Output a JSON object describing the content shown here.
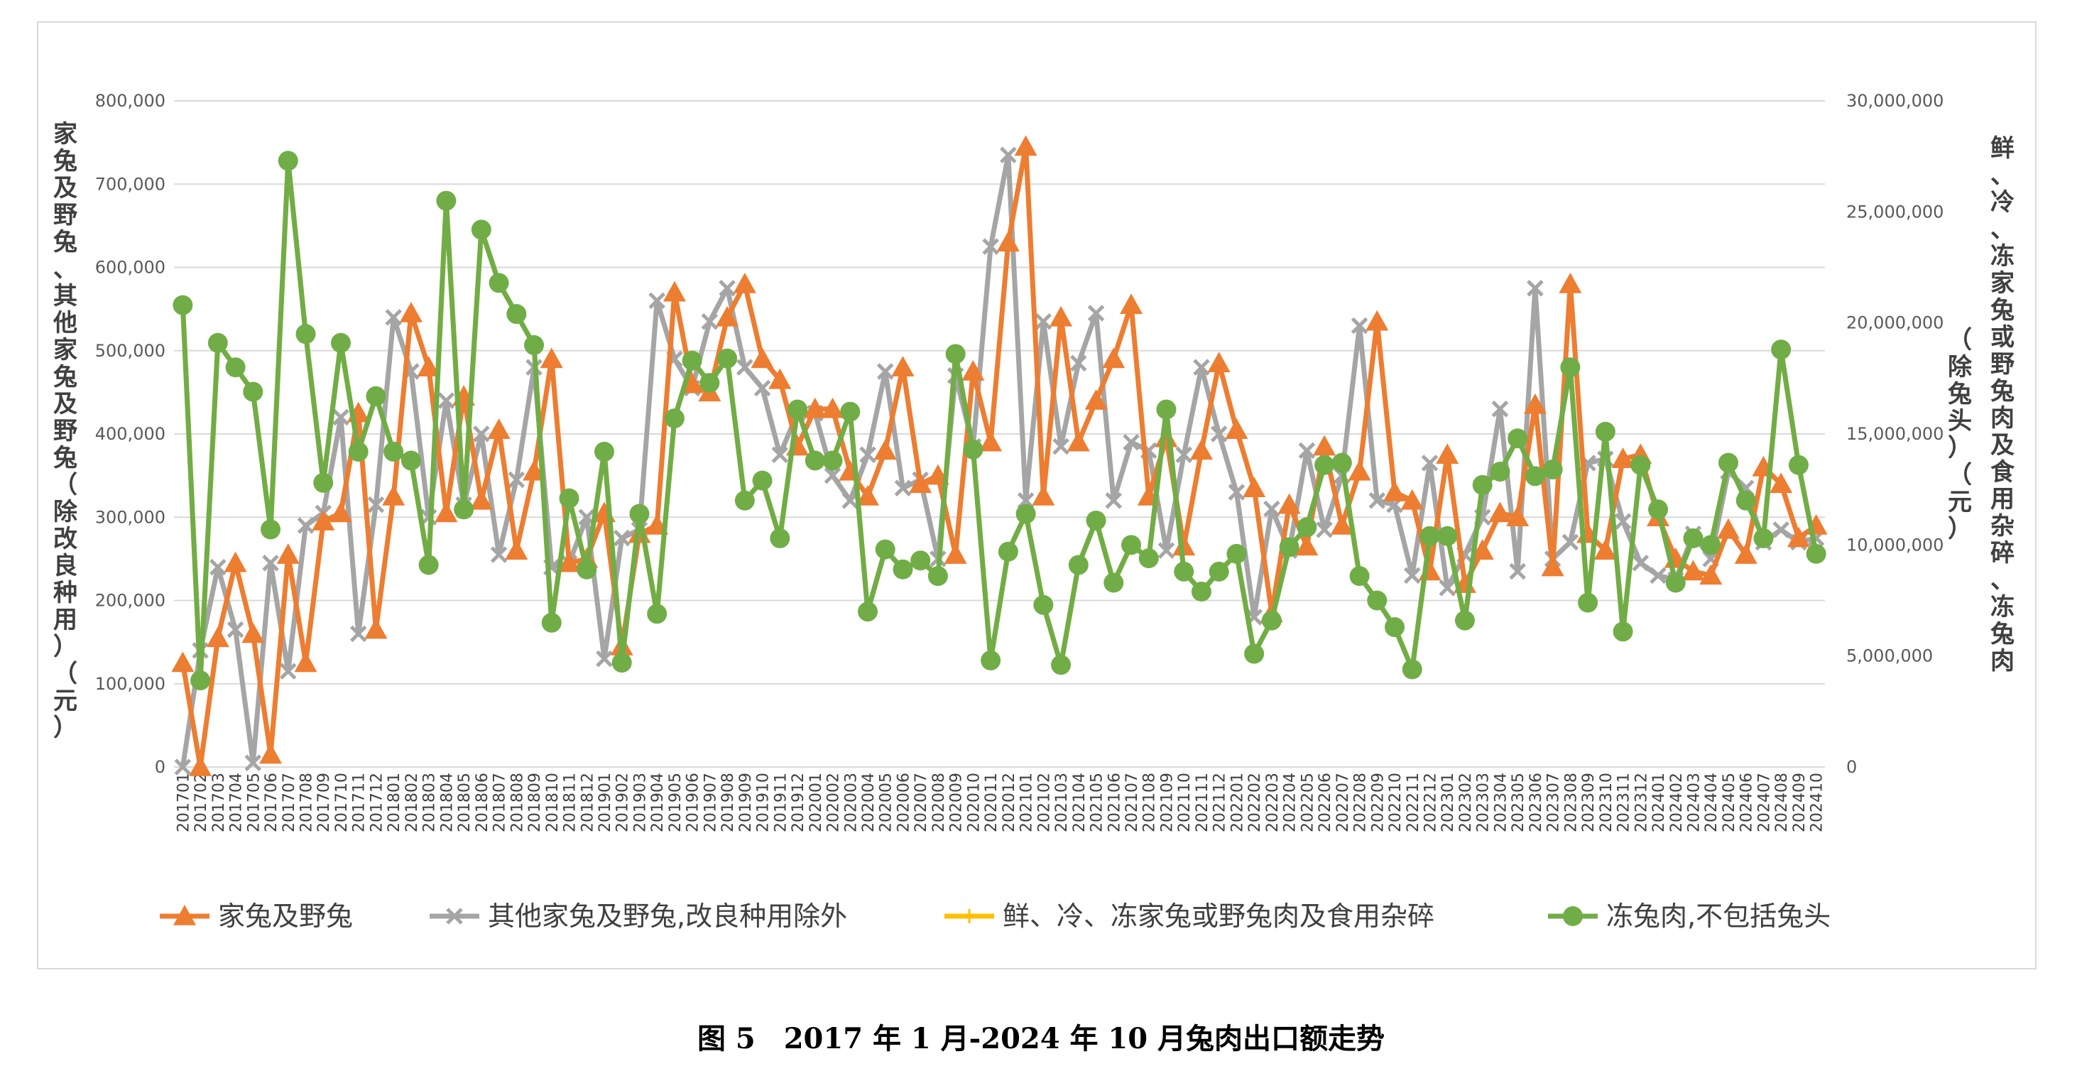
{
  "caption": "图 5　2017 年 1 月-2024 年 10 月兔肉出口额走势",
  "chart_data": {
    "type": "line",
    "y_left": {
      "title": "家兔及野兔、其他家兔及野兔（除改良种用）（元）",
      "ylim": [
        0,
        800000
      ],
      "ticks": [
        "0",
        "100,000",
        "200,000",
        "300,000",
        "400,000",
        "500,000",
        "600,000",
        "700,000",
        "800,000"
      ]
    },
    "y_right": {
      "title": "鲜、冷、冻家兔或野兔肉及食用杂碎、冻兔肉（除兔头）（元）",
      "ylim": [
        0,
        30000000
      ],
      "ticks": [
        "0",
        "5,000,000",
        "10,000,000",
        "15,000,000",
        "20,000,000",
        "25,000,000",
        "30,000,000"
      ]
    },
    "grid": true,
    "legend_position": "bottom",
    "categories": [
      "201701",
      "201702",
      "201703",
      "201704",
      "201705",
      "201706",
      "201707",
      "201708",
      "201709",
      "201710",
      "201711",
      "201712",
      "201801",
      "201802",
      "201803",
      "201804",
      "201805",
      "201806",
      "201807",
      "201808",
      "201809",
      "201810",
      "201811",
      "201812",
      "201901",
      "201902",
      "201903",
      "201904",
      "201905",
      "201906",
      "201907",
      "201908",
      "201909",
      "201910",
      "201911",
      "201912",
      "202001",
      "202002",
      "202003",
      "202004",
      "202005",
      "202006",
      "202007",
      "202008",
      "202009",
      "202010",
      "202011",
      "202012",
      "202101",
      "202102",
      "202103",
      "202104",
      "202105",
      "202106",
      "202107",
      "202108",
      "202109",
      "202110",
      "202111",
      "202112",
      "202201",
      "202202",
      "202203",
      "202204",
      "202205",
      "202206",
      "202207",
      "202208",
      "202209",
      "202210",
      "202211",
      "202212",
      "202301",
      "202302",
      "202303",
      "202304",
      "202305",
      "202306",
      "202307",
      "202308",
      "202309",
      "202310",
      "202311",
      "202312",
      "202401",
      "202402",
      "202403",
      "202404",
      "202405",
      "202406",
      "202407",
      "202408",
      "202409",
      "202410"
    ],
    "tick_labels": [
      "201701",
      "201702",
      "201703",
      "201704",
      "201705",
      "201706",
      "201707",
      "201708",
      "201709",
      "201710",
      "201711",
      "201712",
      "201801",
      "201802",
      "201803",
      "201804",
      "201805",
      "201806",
      "201807",
      "201808",
      "201809",
      "201810",
      "201811",
      "201812",
      "201901",
      "201902",
      "201903",
      "201904",
      "201905",
      "201906",
      "201907",
      "201908",
      "201909",
      "201910",
      "201911",
      "201912",
      "202001",
      "202002",
      "202003",
      "202004",
      "202005",
      "202006",
      "202007",
      "202008",
      "202009",
      "202010",
      "202011",
      "202012",
      "202101",
      "202102",
      "202103",
      "202104",
      "202105",
      "202106",
      "202107",
      "202108",
      "202109",
      "202110",
      "202111",
      "202112",
      "202201",
      "202202",
      "202203",
      "202204",
      "202205",
      "202206",
      "202207",
      "202208",
      "202209",
      "202210",
      "202211",
      "202212",
      "202301",
      "202302",
      "202303",
      "202304",
      "202305",
      "202306",
      "202307",
      "202308",
      "202309",
      "202310",
      "202311",
      "202312",
      "202401",
      "202402",
      "202403",
      "202404",
      "202405",
      "202406",
      "202407",
      "202408",
      "202409",
      "202410"
    ],
    "series": [
      {
        "name": "家兔及野兔",
        "axis": "left",
        "color": "#ED7D31",
        "marker": "triangle",
        "values": [
          125000,
          0,
          155000,
          245000,
          160000,
          15000,
          255000,
          125000,
          295000,
          305000,
          425000,
          165000,
          325000,
          545000,
          480000,
          305000,
          445000,
          320000,
          405000,
          260000,
          355000,
          490000,
          245000,
          250000,
          305000,
          145000,
          280000,
          290000,
          570000,
          460000,
          450000,
          540000,
          580000,
          490000,
          465000,
          385000,
          430000,
          430000,
          355000,
          325000,
          380000,
          480000,
          340000,
          350000,
          255000,
          475000,
          390000,
          630000,
          745000,
          325000,
          540000,
          390000,
          440000,
          490000,
          555000,
          325000,
          395000,
          265000,
          380000,
          485000,
          405000,
          335000,
          185000,
          315000,
          265000,
          385000,
          290000,
          355000,
          535000,
          330000,
          320000,
          235000,
          375000,
          220000,
          260000,
          305000,
          300000,
          435000,
          240000,
          580000,
          280000,
          260000,
          370000,
          375000,
          300000,
          250000,
          235000,
          230000,
          285000,
          255000,
          360000,
          340000,
          275000,
          290000
        ]
      },
      {
        "name": "其他家兔及野兔,改良种用除外",
        "axis": "left",
        "color": "#A5A5A5",
        "marker": "x",
        "values": [
          0,
          140000,
          240000,
          165000,
          5000,
          245000,
          115000,
          290000,
          305000,
          420000,
          160000,
          315000,
          540000,
          475000,
          300000,
          440000,
          315000,
          400000,
          255000,
          345000,
          480000,
          240000,
          245000,
          300000,
          130000,
          275000,
          285000,
          560000,
          490000,
          455000,
          535000,
          575000,
          480000,
          455000,
          375000,
          425000,
          425000,
          350000,
          320000,
          375000,
          475000,
          335000,
          345000,
          250000,
          470000,
          385000,
          625000,
          735000,
          320000,
          535000,
          385000,
          485000,
          545000,
          320000,
          390000,
          380000,
          260000,
          375000,
          480000,
          400000,
          330000,
          180000,
          310000,
          260000,
          380000,
          285000,
          350000,
          530000,
          320000,
          315000,
          230000,
          365000,
          215000,
          255000,
          300000,
          430000,
          235000,
          575000,
          250000,
          270000,
          365000,
          370000,
          295000,
          245000,
          230000,
          225000,
          280000,
          250000,
          355000,
          335000,
          270000,
          285000,
          270000,
          275000
        ]
      },
      {
        "name": "鲜、冷、冻家兔或野兔肉及食用杂碎",
        "axis": "right",
        "color": "#FFC000",
        "marker": "plus",
        "values": [
          20800000,
          3900000,
          19100000,
          18000000,
          16900000,
          10700000,
          27300000,
          19500000,
          12800000,
          19100000,
          14200000,
          16700000,
          14200000,
          13800000,
          9100000,
          25500000,
          11600000,
          24200000,
          21800000,
          20400000,
          19000000,
          6500000,
          12100000,
          8900000,
          14200000,
          4700000,
          11400000,
          6900000,
          15700000,
          18300000,
          17300000,
          18400000,
          12000000,
          12900000,
          10300000,
          16100000,
          13800000,
          13800000,
          16000000,
          7000000,
          9800000,
          8900000,
          9300000,
          8600000,
          18600000,
          14300000,
          4800000,
          9700000,
          11400000,
          7300000,
          4600000,
          9100000,
          11100000,
          8300000,
          10000000,
          9400000,
          16100000,
          8800000,
          7900000,
          8800000,
          9600000,
          5100000,
          6600000,
          9900000,
          10800000,
          13600000,
          13700000,
          8600000,
          7500000,
          6300000,
          4400000,
          10400000,
          10400000,
          6600000,
          12700000,
          13300000,
          14800000,
          13100000,
          13400000,
          18000000,
          7400000,
          15100000,
          6100000,
          13600000,
          11600000,
          8300000,
          10300000,
          10000000,
          13700000,
          12000000,
          10300000,
          18800000,
          13600000,
          9600000
        ]
      },
      {
        "name": "冻兔肉,不包括兔头",
        "axis": "right",
        "color": "#70AD47",
        "marker": "circle",
        "values": [
          20800000,
          3900000,
          19100000,
          18000000,
          16900000,
          10700000,
          27300000,
          19500000,
          12800000,
          19100000,
          14200000,
          16700000,
          14200000,
          13800000,
          9100000,
          25500000,
          11600000,
          24200000,
          21800000,
          20400000,
          19000000,
          6500000,
          12100000,
          8900000,
          14200000,
          4700000,
          11400000,
          6900000,
          15700000,
          18300000,
          17300000,
          18400000,
          12000000,
          12900000,
          10300000,
          16100000,
          13800000,
          13800000,
          16000000,
          7000000,
          9800000,
          8900000,
          9300000,
          8600000,
          18600000,
          14300000,
          4800000,
          9700000,
          11400000,
          7300000,
          4600000,
          9100000,
          11100000,
          8300000,
          10000000,
          9400000,
          16100000,
          8800000,
          7900000,
          8800000,
          9600000,
          5100000,
          6600000,
          9900000,
          10800000,
          13600000,
          13700000,
          8600000,
          7500000,
          6300000,
          4400000,
          10400000,
          10400000,
          6600000,
          12700000,
          13300000,
          14800000,
          13100000,
          13400000,
          18000000,
          7400000,
          15100000,
          6100000,
          13600000,
          11600000,
          8300000,
          10300000,
          10000000,
          13700000,
          12000000,
          10300000,
          18800000,
          13600000,
          9600000
        ]
      }
    ]
  }
}
